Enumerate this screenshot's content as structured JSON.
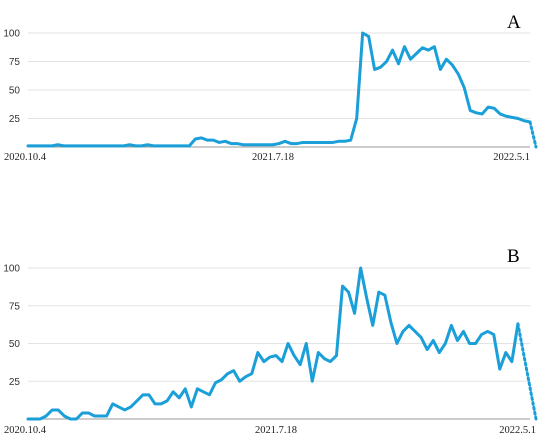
{
  "colors": {
    "line": "#1a9fd9",
    "grid": "#e3e3e3",
    "axis": "#9a9a9a"
  },
  "chart_data": [
    {
      "type": "line",
      "title": "A",
      "ylim": [
        0,
        100
      ],
      "yticks": [
        25,
        50,
        75,
        100
      ],
      "grid": true,
      "x_tick_labels": [
        "2020.10.4",
        "2021.7.18",
        "2022.5.1"
      ],
      "x_tick_index": [
        0,
        41,
        83
      ],
      "values": [
        1,
        1,
        1,
        1,
        1,
        2,
        1,
        1,
        1,
        1,
        1,
        1,
        1,
        1,
        1,
        1,
        1,
        2,
        1,
        1,
        2,
        1,
        1,
        1,
        1,
        1,
        1,
        1,
        7,
        8,
        6,
        6,
        4,
        5,
        3,
        3,
        2,
        2,
        2,
        2,
        2,
        2,
        3,
        5,
        3,
        3,
        4,
        4,
        4,
        4,
        4,
        4,
        5,
        5,
        6,
        25,
        100,
        97,
        68,
        70,
        75,
        85,
        73,
        88,
        77,
        82,
        87,
        85,
        88,
        68,
        77,
        72,
        64,
        52,
        32,
        30,
        29,
        35,
        34,
        29,
        27,
        26,
        25,
        23,
        22
      ],
      "partial_last": 0
    },
    {
      "type": "line",
      "title": "B",
      "ylim": [
        0,
        100
      ],
      "yticks": [
        25,
        50,
        75,
        100
      ],
      "grid": true,
      "x_tick_labels": [
        "2020.10.4",
        "2021.7.18",
        "2022.5.1"
      ],
      "x_tick_index": [
        0,
        41,
        83
      ],
      "values": [
        0,
        0,
        0,
        2,
        6,
        6,
        2,
        0,
        0,
        4,
        4,
        2,
        2,
        2,
        10,
        8,
        6,
        8,
        12,
        16,
        16,
        10,
        10,
        12,
        18,
        14,
        20,
        8,
        20,
        18,
        16,
        24,
        26,
        30,
        32,
        25,
        28,
        30,
        44,
        38,
        41,
        42,
        38,
        50,
        42,
        36,
        50,
        25,
        44,
        40,
        38,
        42,
        88,
        84,
        70,
        100,
        80,
        62,
        84,
        82,
        64,
        50,
        58,
        62,
        58,
        54,
        46,
        52,
        44,
        50,
        62,
        52,
        58,
        50,
        50,
        56,
        58,
        56,
        33,
        44,
        38,
        63
      ],
      "partial_last": 0
    }
  ]
}
